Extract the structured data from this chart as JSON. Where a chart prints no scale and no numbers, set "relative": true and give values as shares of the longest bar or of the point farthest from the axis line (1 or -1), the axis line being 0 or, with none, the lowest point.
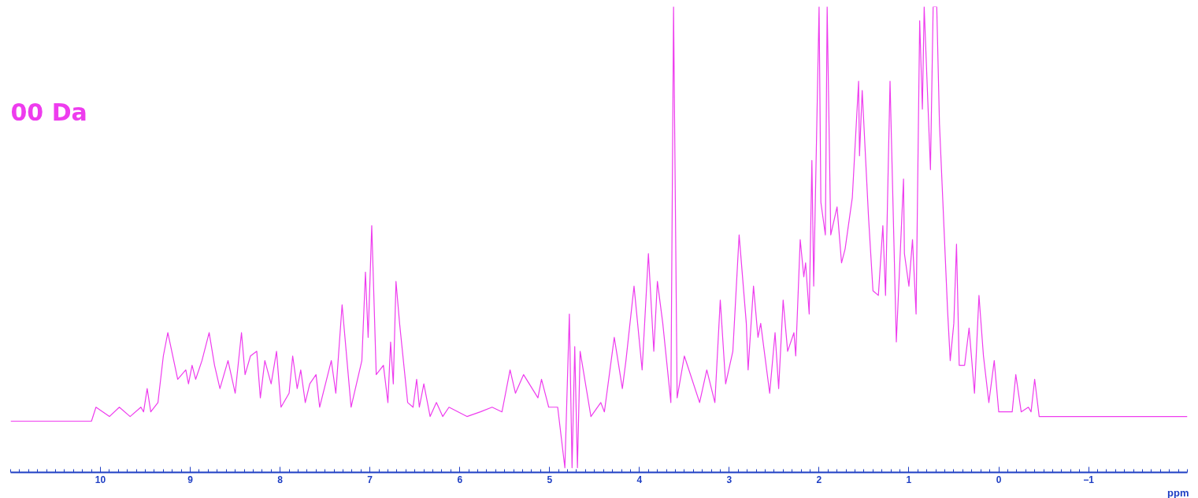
{
  "chart_data": {
    "type": "line",
    "relative": true,
    "xlabel": "ppm",
    "annotations": [
      "00 Da"
    ],
    "xlim": [
      11.0,
      -2.1
    ],
    "xticks": [
      10,
      9,
      8,
      7,
      6,
      5,
      4,
      3,
      2,
      1,
      0,
      {
        "value": -1,
        "label": "−1"
      }
    ],
    "grid": false,
    "marker": "none",
    "line_style": "solid",
    "series": [
      {
        "color": "#ee3cee",
        "x": [
          11.0,
          10.1,
          10.05,
          9.9,
          9.79,
          9.67,
          9.55,
          9.52,
          9.48,
          9.44,
          9.36,
          9.3,
          9.25,
          9.14,
          9.05,
          9.02,
          8.98,
          8.94,
          8.87,
          8.79,
          8.73,
          8.67,
          8.58,
          8.5,
          8.43,
          8.39,
          8.33,
          8.26,
          8.22,
          8.17,
          8.1,
          8.04,
          7.99,
          7.9,
          7.86,
          7.81,
          7.77,
          7.72,
          7.67,
          7.6,
          7.56,
          7.43,
          7.38,
          7.31,
          7.21,
          7.09,
          7.05,
          7.02,
          6.98,
          6.93,
          6.85,
          6.8,
          6.77,
          6.74,
          6.71,
          6.67,
          6.58,
          6.52,
          6.48,
          6.45,
          6.4,
          6.33,
          6.26,
          6.19,
          6.12,
          5.92,
          5.77,
          5.64,
          5.53,
          5.44,
          5.38,
          5.29,
          5.13,
          5.09,
          5.01,
          4.91,
          4.83,
          4.78,
          4.75,
          4.72,
          4.69,
          4.66,
          4.54,
          4.43,
          4.39,
          4.28,
          4.19,
          4.15,
          4.06,
          3.97,
          3.9,
          3.84,
          3.8,
          3.74,
          3.65,
          3.62,
          3.58,
          3.5,
          3.33,
          3.25,
          3.16,
          3.1,
          3.04,
          2.96,
          2.89,
          2.81,
          2.79,
          2.73,
          2.68,
          2.65,
          2.55,
          2.49,
          2.45,
          2.4,
          2.35,
          2.28,
          2.26,
          2.21,
          2.17,
          2.15,
          2.11,
          2.08,
          2.06,
          2.0,
          1.98,
          1.93,
          1.91,
          1.87,
          1.8,
          1.75,
          1.71,
          1.63,
          1.56,
          1.55,
          1.52,
          1.45,
          1.4,
          1.34,
          1.29,
          1.26,
          1.21,
          1.14,
          1.06,
          1.05,
          1.0,
          0.96,
          0.92,
          0.88,
          0.85,
          0.83,
          0.76,
          0.73,
          0.69,
          0.66,
          0.57,
          0.54,
          0.5,
          0.47,
          0.44,
          0.38,
          0.33,
          0.27,
          0.22,
          0.17,
          0.11,
          0.05,
          0.0,
          -0.15,
          -0.19,
          -0.25,
          -0.33,
          -0.36,
          -0.4,
          -0.45,
          -2.1
        ],
        "values": [
          0.11,
          0.11,
          0.14,
          0.12,
          0.14,
          0.12,
          0.14,
          0.13,
          0.18,
          0.13,
          0.15,
          0.25,
          0.3,
          0.2,
          0.22,
          0.19,
          0.23,
          0.2,
          0.24,
          0.3,
          0.23,
          0.18,
          0.24,
          0.17,
          0.3,
          0.21,
          0.25,
          0.26,
          0.16,
          0.24,
          0.19,
          0.26,
          0.14,
          0.17,
          0.25,
          0.18,
          0.22,
          0.15,
          0.19,
          0.21,
          0.14,
          0.24,
          0.17,
          0.36,
          0.14,
          0.24,
          0.43,
          0.29,
          0.53,
          0.21,
          0.23,
          0.15,
          0.28,
          0.19,
          0.41,
          0.32,
          0.15,
          0.14,
          0.2,
          0.14,
          0.19,
          0.12,
          0.15,
          0.12,
          0.14,
          0.12,
          0.13,
          0.14,
          0.13,
          0.22,
          0.17,
          0.21,
          0.16,
          0.2,
          0.14,
          0.14,
          0.01,
          0.34,
          0.01,
          0.27,
          0.01,
          0.26,
          0.12,
          0.15,
          0.13,
          0.29,
          0.18,
          0.24,
          0.4,
          0.22,
          0.47,
          0.26,
          0.41,
          0.32,
          0.15,
          1.0,
          0.16,
          0.25,
          0.15,
          0.22,
          0.15,
          0.37,
          0.19,
          0.26,
          0.51,
          0.32,
          0.22,
          0.4,
          0.29,
          0.32,
          0.17,
          0.3,
          0.18,
          0.37,
          0.26,
          0.3,
          0.25,
          0.5,
          0.42,
          0.45,
          0.34,
          0.67,
          0.4,
          1.0,
          0.58,
          0.51,
          1.0,
          0.51,
          0.57,
          0.45,
          0.48,
          0.59,
          0.84,
          0.68,
          0.82,
          0.55,
          0.39,
          0.38,
          0.53,
          0.38,
          0.84,
          0.28,
          0.63,
          0.47,
          0.4,
          0.5,
          0.34,
          0.97,
          0.78,
          1.0,
          0.65,
          1.0,
          1.0,
          0.75,
          0.35,
          0.24,
          0.32,
          0.49,
          0.23,
          0.23,
          0.31,
          0.17,
          0.38,
          0.25,
          0.15,
          0.24,
          0.13,
          0.13,
          0.21,
          0.13,
          0.14,
          0.13,
          0.2,
          0.12,
          0.12
        ]
      }
    ]
  }
}
